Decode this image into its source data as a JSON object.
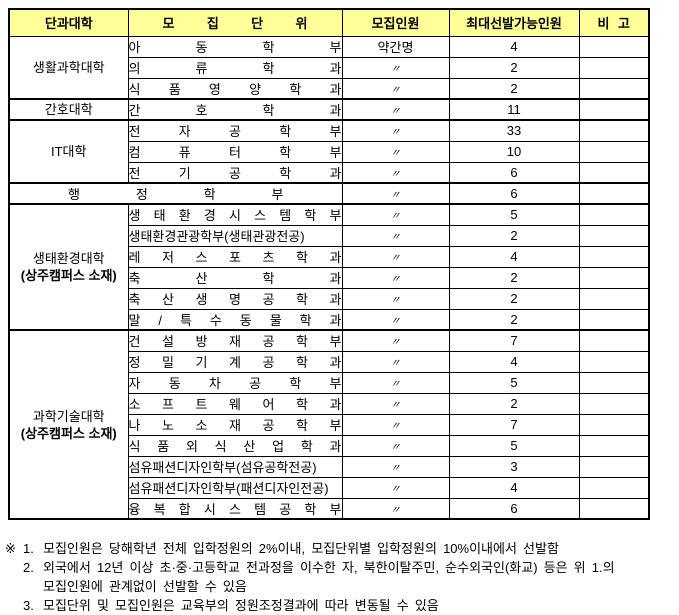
{
  "colors": {
    "page_bg": "#FFFFFF",
    "header_bg": "#FFFF99",
    "border": "#000000",
    "text": "#000000"
  },
  "table": {
    "columns": [
      "단과대학",
      "모 집 단 위",
      "모집인원",
      "최대선발가능인원",
      "비 고"
    ],
    "groups": [
      {
        "college": "생활과학대학",
        "college_sub": "",
        "rows": [
          {
            "unit": "아 동 학 부",
            "quota": "약간명",
            "max": "4",
            "note": ""
          },
          {
            "unit": "의 류 학 과",
            "quota": "〃",
            "max": "2",
            "note": ""
          },
          {
            "unit": "식 품 영 양 학 과",
            "quota": "〃",
            "max": "2",
            "note": ""
          }
        ]
      },
      {
        "college": "간호대학",
        "college_sub": "",
        "rows": [
          {
            "unit": "간 호 학 과",
            "quota": "〃",
            "max": "11",
            "note": ""
          }
        ]
      },
      {
        "college": "IT대학",
        "college_sub": "",
        "rows": [
          {
            "unit": "전 자 공 학 부",
            "quota": "〃",
            "max": "33",
            "note": ""
          },
          {
            "unit": "컴 퓨 터 학 부",
            "quota": "〃",
            "max": "10",
            "note": ""
          },
          {
            "unit": "전 기 공 학 과",
            "quota": "〃",
            "max": "6",
            "note": ""
          }
        ]
      },
      {
        "college": "",
        "college_sub": "",
        "merged_unit": true,
        "rows": [
          {
            "unit": "행 정 학 부",
            "quota": "〃",
            "max": "6",
            "note": ""
          }
        ]
      },
      {
        "college": "생태환경대학",
        "college_sub": "(상주캠퍼스 소재)",
        "rows": [
          {
            "unit": "생 태 환 경 시 스 템 학 부",
            "quota": "〃",
            "max": "5",
            "note": ""
          },
          {
            "unit": "생태환경관광학부(생태관광전공)",
            "quota": "〃",
            "max": "2",
            "note": ""
          },
          {
            "unit": "레 저 스 포 츠 학 과",
            "quota": "〃",
            "max": "4",
            "note": ""
          },
          {
            "unit": "축 산 학 과",
            "quota": "〃",
            "max": "2",
            "note": ""
          },
          {
            "unit": "축 산 생 명 공 학 과",
            "quota": "〃",
            "max": "2",
            "note": ""
          },
          {
            "unit": "말 / 특 수 동 물 학 과",
            "quota": "〃",
            "max": "2",
            "note": ""
          }
        ]
      },
      {
        "college": "과학기술대학",
        "college_sub": "(상주캠퍼스 소재)",
        "rows": [
          {
            "unit": "건 설 방 재 공 학 부",
            "quota": "〃",
            "max": "7",
            "note": ""
          },
          {
            "unit": "정 밀 기 계 공 학 과",
            "quota": "〃",
            "max": "4",
            "note": ""
          },
          {
            "unit": "자 동 차 공 학 부",
            "quota": "〃",
            "max": "5",
            "note": ""
          },
          {
            "unit": "소 프 트 웨 어 학 과",
            "quota": "〃",
            "max": "2",
            "note": ""
          },
          {
            "unit": "나 노 소 재 공 학 부",
            "quota": "〃",
            "max": "7",
            "note": ""
          },
          {
            "unit": "식 품 외 식 산 업 학 과",
            "quota": "〃",
            "max": "5",
            "note": ""
          },
          {
            "unit": "섬유패션디자인학부(섬유공학전공)",
            "quota": "〃",
            "max": "3",
            "note": ""
          },
          {
            "unit": "섬유패션디자인학부(패션디자인전공)",
            "quota": "〃",
            "max": "4",
            "note": ""
          },
          {
            "unit": "융 복 합 시 스 템 공 학 부",
            "quota": "〃",
            "max": "6",
            "note": ""
          }
        ]
      }
    ]
  },
  "footnotes": {
    "marker": "※",
    "items": [
      {
        "num": "1.",
        "lines": [
          "모집인원은 당해학년 전체 입학정원의 2%이내, 모집단위별 입학정원의 10%이내에서 선발함"
        ]
      },
      {
        "num": "2.",
        "lines": [
          "외국에서 12년 이상 초·중·고등학교 전과정을 이수한 자, 북한이탈주민, 순수외국인(화교) 등은 위 1.의",
          "모집인원에 관계없이 선발할 수 있음"
        ]
      },
      {
        "num": "3.",
        "lines": [
          "모집단위 및 모집인원은 교육부의 정원조정결과에 따라 변동될 수 있음"
        ]
      }
    ]
  }
}
